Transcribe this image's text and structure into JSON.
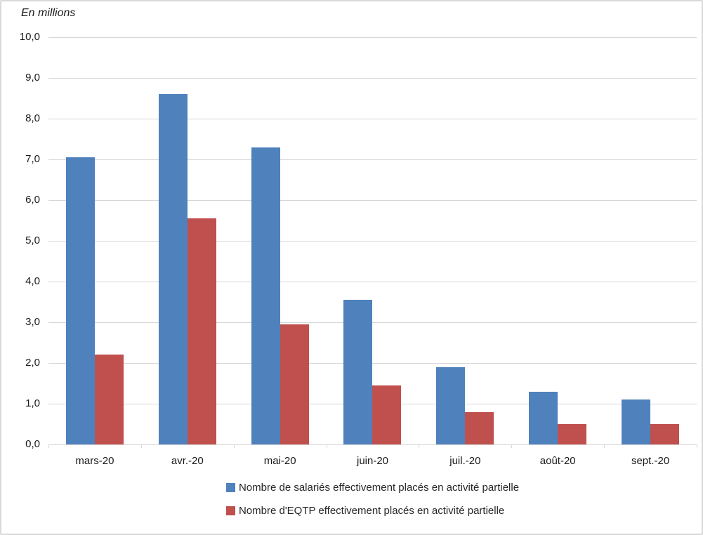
{
  "chart_data": {
    "type": "bar",
    "title": "",
    "units_label": "En millions",
    "categories": [
      "mars-20",
      "avr.-20",
      "mai-20",
      "juin-20",
      "juil.-20",
      "août-20",
      "sept.-20"
    ],
    "series": [
      {
        "name": "Nombre de salariés effectivement placés en activité partielle",
        "color": "#4F81BD",
        "values": [
          7.05,
          8.6,
          7.3,
          3.55,
          1.9,
          1.3,
          1.1
        ]
      },
      {
        "name": "Nombre d'EQTP effectivement placés en activité partielle",
        "color": "#C0504D",
        "values": [
          2.2,
          5.55,
          2.95,
          1.45,
          0.8,
          0.5,
          0.5
        ]
      }
    ],
    "y_axis": {
      "min": 0,
      "max": 10,
      "step": 1,
      "tick_labels_top_to_bottom": [
        "10,0",
        "9,0",
        "8,0",
        "7,0",
        "6,0",
        "5,0",
        "4,0",
        "3,0",
        "2,0",
        "1,0",
        "0,0"
      ]
    },
    "grid": true,
    "legend_position": "bottom"
  },
  "colors": {
    "grid": "#D6D6D6",
    "border": "#D9D9D9",
    "axis_text": "#1A1A1A",
    "legend_text": "#262626"
  }
}
